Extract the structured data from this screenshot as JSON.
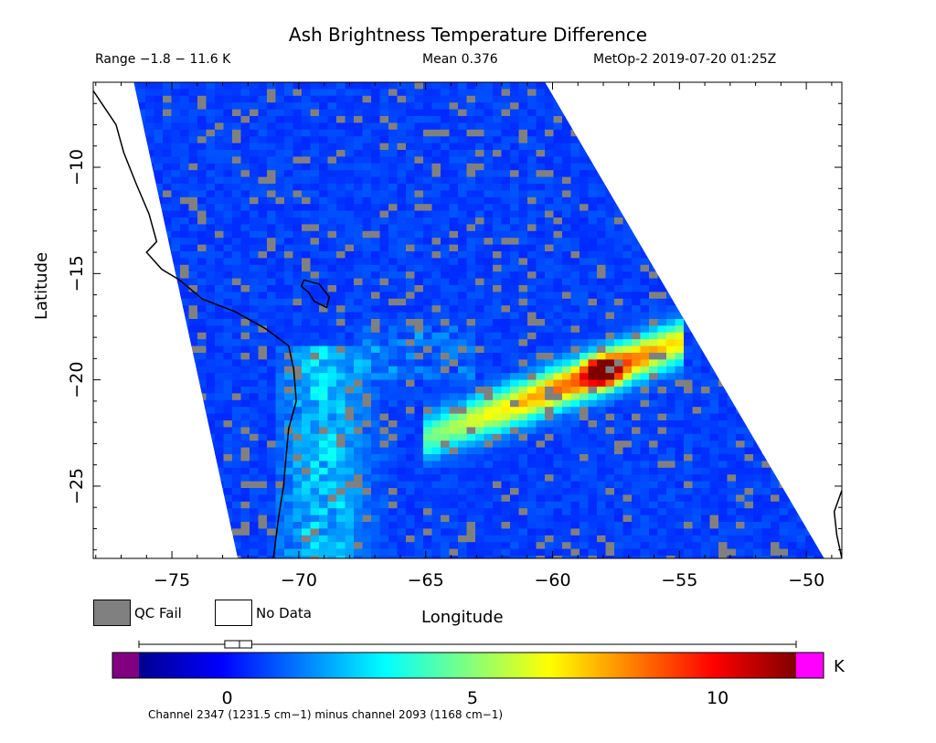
{
  "chart_data": {
    "type": "heatmap",
    "title": "Ash Brightness Temperature Difference",
    "range_text": "Range −1.8 − 11.6 K",
    "mean_text": "Mean 0.376",
    "satellite_text": "MetOp-2 2019-07-20 01:25Z",
    "xlabel": "Longitude",
    "ylabel": "Latitude",
    "xlim": [
      -78.1,
      -48.6
    ],
    "ylim": [
      -28.4,
      -6.0
    ],
    "x_ticks": [
      -75,
      -70,
      -65,
      -60,
      -55,
      -50
    ],
    "x_tick_labels": [
      "−75",
      "−70",
      "−65",
      "−60",
      "−55",
      "−50"
    ],
    "y_ticks": [
      -10,
      -15,
      -20,
      -25
    ],
    "y_tick_labels": [
      "−10",
      "−15",
      "−20",
      "−25"
    ],
    "swath_edges": {
      "west": [
        [
          -76.5,
          -6.0
        ],
        [
          -72.4,
          -28.4
        ]
      ],
      "east": [
        [
          -60.3,
          -6.0
        ],
        [
          -49.3,
          -28.4
        ]
      ]
    },
    "plume_hotspot": {
      "lon": -58.0,
      "lat": -19.6,
      "max_value": 11.6
    },
    "colorbar": {
      "min": -1.8,
      "max": 11.6,
      "ticks": [
        0,
        5,
        10
      ],
      "tick_labels": [
        "0",
        "5",
        "10"
      ],
      "unit": "K",
      "box_low": -0.05,
      "box_mid": 0.25,
      "box_high": 0.5,
      "whisker_low": -1.8,
      "whisker_high": 11.6,
      "under_color": "#800080",
      "over_color": "#ff00ff"
    },
    "legend": [
      {
        "label": "QC Fail",
        "color": "#808080"
      },
      {
        "label": "No Data",
        "color": "#ffffff"
      }
    ],
    "caption": "Channel 2347 (1231.5 cm−1) minus channel 2093 (1168 cm−1)"
  }
}
